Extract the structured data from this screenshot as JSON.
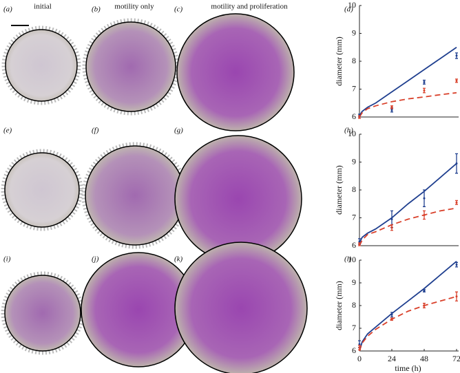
{
  "column_titles": [
    "initial",
    "motility only",
    "motility and proliferation"
  ],
  "panel_labels": [
    "(a)",
    "(b)",
    "(c)",
    "(d)",
    "(e)",
    "(f)",
    "(g)",
    "(h)",
    "(i)",
    "(j)",
    "(k)",
    "(l)"
  ],
  "chart_data": [
    {
      "type": "line",
      "ylabel": "diameter (mm)",
      "xlim": [
        0,
        72
      ],
      "ylim": [
        6,
        10
      ],
      "yticks": [
        6,
        7,
        8,
        9,
        10
      ],
      "x": [
        0,
        2,
        6,
        12,
        24,
        36,
        48,
        60,
        72
      ],
      "lines": [
        {
          "color": "#1f3f8f",
          "dash": false,
          "values": [
            6.05,
            6.2,
            6.35,
            6.5,
            6.9,
            7.3,
            7.7,
            8.1,
            8.5
          ]
        },
        {
          "color": "#d9402a",
          "dash": true,
          "values": [
            6.0,
            6.15,
            6.3,
            6.4,
            6.55,
            6.65,
            6.72,
            6.8,
            6.87
          ]
        }
      ],
      "points": [
        {
          "color": "#1f3f8f",
          "x": [
            0,
            24,
            48,
            72
          ],
          "values": [
            6.05,
            6.25,
            7.25,
            8.2
          ],
          "errors": [
            0.05,
            0.07,
            0.07,
            0.1
          ]
        },
        {
          "color": "#d9402a",
          "x": [
            0,
            24,
            48,
            72
          ],
          "values": [
            6.0,
            6.35,
            6.95,
            7.3
          ],
          "errors": [
            0.05,
            0.05,
            0.08,
            0.06
          ]
        }
      ]
    },
    {
      "type": "line",
      "ylabel": "diameter (mm)",
      "xlim": [
        0,
        72
      ],
      "ylim": [
        6,
        10
      ],
      "yticks": [
        6,
        7,
        8,
        9,
        10
      ],
      "x": [
        0,
        2,
        6,
        12,
        24,
        36,
        48,
        60,
        72
      ],
      "lines": [
        {
          "color": "#1f3f8f",
          "dash": false,
          "values": [
            6.1,
            6.3,
            6.45,
            6.6,
            7.0,
            7.5,
            7.95,
            8.45,
            8.95
          ]
        },
        {
          "color": "#d9402a",
          "dash": true,
          "values": [
            6.0,
            6.2,
            6.4,
            6.5,
            6.75,
            6.95,
            7.1,
            7.25,
            7.35
          ]
        }
      ],
      "points": [
        {
          "color": "#1f3f8f",
          "x": [
            0,
            24,
            48,
            72
          ],
          "values": [
            6.15,
            6.95,
            7.7,
            8.95
          ],
          "errors": [
            0.1,
            0.3,
            0.3,
            0.35
          ]
        },
        {
          "color": "#d9402a",
          "x": [
            0,
            24,
            48,
            72
          ],
          "values": [
            6.05,
            6.65,
            7.1,
            7.55
          ],
          "errors": [
            0.05,
            0.1,
            0.15,
            0.07
          ]
        }
      ]
    },
    {
      "type": "line",
      "ylabel": "diameter (mm)",
      "xlabel": "time (h)",
      "xlim": [
        0,
        72
      ],
      "ylim": [
        6,
        10
      ],
      "yticks": [
        6,
        7,
        8,
        9,
        10
      ],
      "xticks": [
        0,
        24,
        48,
        72
      ],
      "x": [
        0,
        2,
        6,
        12,
        24,
        36,
        48,
        60,
        72
      ],
      "lines": [
        {
          "color": "#1f3f8f",
          "dash": false,
          "values": [
            6.0,
            6.4,
            6.75,
            7.05,
            7.65,
            8.2,
            8.75,
            9.35,
            9.95
          ]
        },
        {
          "color": "#d9402a",
          "dash": true,
          "values": [
            6.0,
            6.35,
            6.65,
            6.95,
            7.4,
            7.75,
            8.0,
            8.2,
            8.4
          ]
        }
      ],
      "points": [
        {
          "color": "#1f3f8f",
          "x": [
            0,
            24,
            48,
            72
          ],
          "values": [
            6.3,
            7.6,
            8.65,
            9.8
          ],
          "errors": [
            0.15,
            0.1,
            0.05,
            0.1
          ]
        },
        {
          "color": "#d9402a",
          "x": [
            0,
            24,
            48,
            72
          ],
          "values": [
            6.15,
            7.4,
            8.0,
            8.4
          ],
          "errors": [
            0.1,
            0.05,
            0.1,
            0.2
          ]
        }
      ]
    }
  ]
}
